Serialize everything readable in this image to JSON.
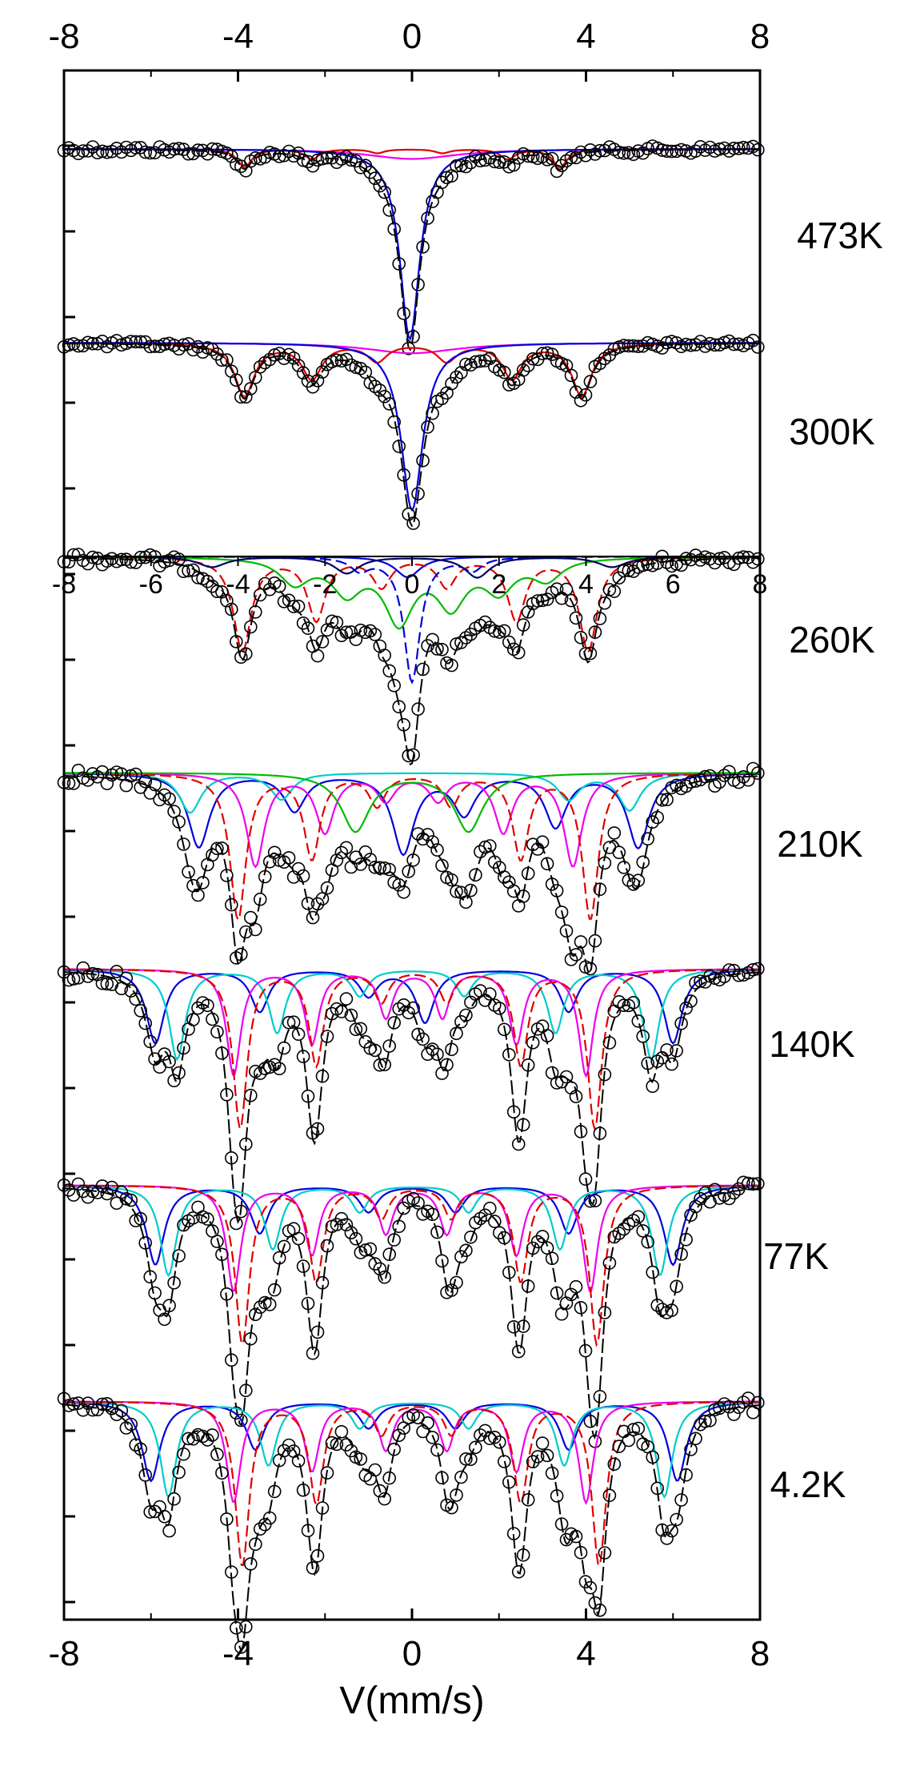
{
  "chart_data": {
    "type": "line",
    "title": "",
    "xlabel": "V(mm/s)",
    "ylabel": "",
    "xlim": [
      -8,
      8
    ],
    "xticks": [
      "-8",
      "-4",
      "0",
      "4",
      "8"
    ],
    "inset_axis": {
      "attached_to": "260K",
      "xlim": [
        -8,
        8
      ],
      "xticks": [
        "-8",
        "-6",
        "-4",
        "-2",
        "0",
        "2",
        "4",
        "6",
        "8"
      ]
    },
    "grid": false,
    "legend": "none",
    "spectrum_type": "Mossbauer absorption spectra, stacked by temperature",
    "colors": {
      "data": "#000000",
      "fit": "#000000",
      "red": "#e00000",
      "blue": "#0000dd",
      "magenta": "#ee00ee",
      "cyan": "#00cccc",
      "green": "#00bb00",
      "dark": "#000066"
    },
    "series": [
      {
        "name": "473K",
        "depth": 0.25,
        "noise": 0.02,
        "components": [
          {
            "color": "magenta",
            "dashed": false,
            "lines": [
              [
                0,
                0.05,
                2.5
              ]
            ]
          },
          {
            "color": "red",
            "dashed": false,
            "lines": [
              [
                -3.85,
                0.09,
                0.4
              ],
              [
                -2.3,
                0.05,
                0.4
              ],
              [
                -0.8,
                0.02,
                0.4
              ],
              [
                0.7,
                0.02,
                0.4
              ],
              [
                2.2,
                0.05,
                0.4
              ],
              [
                3.4,
                0.09,
                0.4
              ]
            ]
          },
          {
            "color": "blue",
            "dashed": false,
            "lines": [
              [
                -0.05,
                0.95,
                0.55
              ]
            ]
          }
        ]
      },
      {
        "name": "300K",
        "depth": 0.22,
        "noise": 0.02,
        "components": [
          {
            "color": "magenta",
            "dashed": false,
            "lines": [
              [
                0,
                0.06,
                2.5
              ]
            ]
          },
          {
            "color": "red",
            "dashed": false,
            "lines": [
              [
                -3.85,
                0.3,
                0.55
              ],
              [
                -2.3,
                0.2,
                0.55
              ],
              [
                -0.8,
                0.1,
                0.55
              ],
              [
                0.8,
                0.1,
                0.55
              ],
              [
                2.3,
                0.2,
                0.55
              ],
              [
                3.9,
                0.3,
                0.55
              ]
            ]
          },
          {
            "color": "blue",
            "dashed": false,
            "lines": [
              [
                0,
                0.95,
                0.6
              ]
            ]
          }
        ]
      },
      {
        "name": "260K",
        "depth": 0.26,
        "noise": 0.03,
        "components": [
          {
            "color": "blue",
            "dashed": false,
            "lines": [
              [
                -0.1,
                0.1,
                0.7
              ]
            ]
          },
          {
            "color": "red",
            "dashed": true,
            "lines": [
              [
                -3.9,
                0.45,
                0.5
              ],
              [
                -2.2,
                0.3,
                0.5
              ],
              [
                -0.7,
                0.14,
                0.5
              ],
              [
                0.8,
                0.14,
                0.5
              ],
              [
                2.4,
                0.3,
                0.5
              ],
              [
                4.05,
                0.45,
                0.5
              ]
            ]
          },
          {
            "color": "green",
            "dashed": false,
            "lines": [
              [
                -2.7,
                0.12,
                0.8
              ],
              [
                -1.5,
                0.16,
                0.8
              ],
              [
                -0.3,
                0.3,
                0.8
              ],
              [
                0.9,
                0.22,
                0.8
              ],
              [
                2.0,
                0.15,
                0.8
              ],
              [
                3.1,
                0.1,
                0.8
              ]
            ]
          },
          {
            "color": "blue",
            "dashed": true,
            "lines": [
              [
                0,
                0.6,
                0.45
              ],
              [
                -1.2,
                0.06,
                0.5
              ],
              [
                1.4,
                0.06,
                0.5
              ]
            ]
          },
          {
            "color": "dark",
            "dashed": false,
            "lines": [
              [
                -4.6,
                0.05,
                0.8
              ],
              [
                4.6,
                0.05,
                0.8
              ],
              [
                1.5,
                0.1,
                0.7
              ],
              [
                -1.5,
                0.08,
                0.7
              ]
            ]
          }
        ]
      },
      {
        "name": "210K",
        "depth": 0.33,
        "noise": 0.03,
        "components": [
          {
            "color": "blue",
            "dashed": false,
            "lines": [
              [
                -4.9,
                0.28,
                0.6
              ],
              [
                -2.7,
                0.14,
                0.6
              ],
              [
                -0.2,
                0.3,
                0.6
              ],
              [
                1.2,
                0.15,
                0.6
              ],
              [
                3.3,
                0.2,
                0.6
              ],
              [
                5.2,
                0.28,
                0.6
              ]
            ]
          },
          {
            "color": "cyan",
            "dashed": false,
            "lines": [
              [
                -5.1,
                0.15,
                0.6
              ],
              [
                -3.0,
                0.1,
                0.6
              ],
              [
                3.6,
                0.1,
                0.6
              ],
              [
                5.0,
                0.14,
                0.6
              ]
            ]
          },
          {
            "color": "magenta",
            "dashed": false,
            "lines": [
              [
                -3.6,
                0.35,
                0.5
              ],
              [
                -2.0,
                0.22,
                0.5
              ],
              [
                -0.6,
                0.1,
                0.5
              ],
              [
                0.6,
                0.1,
                0.5
              ],
              [
                2.1,
                0.22,
                0.5
              ],
              [
                3.7,
                0.35,
                0.5
              ]
            ]
          },
          {
            "color": "red",
            "dashed": true,
            "lines": [
              [
                -4.0,
                0.55,
                0.45
              ],
              [
                -2.3,
                0.32,
                0.45
              ],
              [
                -0.8,
                0.12,
                0.45
              ],
              [
                0.9,
                0.12,
                0.45
              ],
              [
                2.5,
                0.32,
                0.45
              ],
              [
                4.1,
                0.55,
                0.45
              ]
            ]
          },
          {
            "color": "green",
            "dashed": false,
            "lines": [
              [
                -1.3,
                0.22,
                0.8
              ],
              [
                1.3,
                0.22,
                0.8
              ]
            ]
          }
        ]
      },
      {
        "name": "140K",
        "depth": 0.33,
        "noise": 0.03,
        "components": [
          {
            "color": "blue",
            "dashed": false,
            "lines": [
              [
                -5.9,
                0.28,
                0.5
              ],
              [
                -3.5,
                0.16,
                0.5
              ],
              [
                -1.0,
                0.1,
                0.5
              ],
              [
                0.3,
                0.2,
                0.5
              ],
              [
                3.6,
                0.16,
                0.5
              ],
              [
                6.0,
                0.28,
                0.5
              ]
            ]
          },
          {
            "color": "cyan",
            "dashed": false,
            "lines": [
              [
                -5.4,
                0.34,
                0.45
              ],
              [
                -3.1,
                0.24,
                0.45
              ],
              [
                -1.2,
                0.1,
                0.45
              ],
              [
                1.2,
                0.1,
                0.45
              ],
              [
                3.3,
                0.24,
                0.45
              ],
              [
                5.5,
                0.34,
                0.45
              ]
            ]
          },
          {
            "color": "magenta",
            "dashed": false,
            "lines": [
              [
                -4.1,
                0.4,
                0.4
              ],
              [
                -2.3,
                0.28,
                0.4
              ],
              [
                -0.6,
                0.18,
                0.4
              ],
              [
                0.7,
                0.18,
                0.4
              ],
              [
                2.4,
                0.28,
                0.4
              ],
              [
                4.0,
                0.4,
                0.4
              ]
            ]
          },
          {
            "color": "red",
            "dashed": true,
            "lines": [
              [
                -3.95,
                0.6,
                0.4
              ],
              [
                -2.2,
                0.36,
                0.4
              ],
              [
                -0.7,
                0.12,
                0.4
              ],
              [
                0.8,
                0.12,
                0.4
              ],
              [
                2.5,
                0.36,
                0.4
              ],
              [
                4.2,
                0.6,
                0.4
              ]
            ]
          }
        ]
      },
      {
        "name": "77K",
        "depth": 0.33,
        "noise": 0.03,
        "components": [
          {
            "color": "blue",
            "dashed": false,
            "lines": [
              [
                -5.9,
                0.3,
                0.5
              ],
              [
                -3.5,
                0.18,
                0.5
              ],
              [
                -1.0,
                0.1,
                0.5
              ],
              [
                1.0,
                0.1,
                0.5
              ],
              [
                3.6,
                0.18,
                0.5
              ],
              [
                6.0,
                0.3,
                0.5
              ]
            ]
          },
          {
            "color": "cyan",
            "dashed": false,
            "lines": [
              [
                -5.6,
                0.34,
                0.45
              ],
              [
                -3.2,
                0.24,
                0.45
              ],
              [
                -1.2,
                0.1,
                0.45
              ],
              [
                1.3,
                0.1,
                0.45
              ],
              [
                3.4,
                0.24,
                0.45
              ],
              [
                5.7,
                0.34,
                0.45
              ]
            ]
          },
          {
            "color": "magenta",
            "dashed": false,
            "lines": [
              [
                -4.1,
                0.4,
                0.4
              ],
              [
                -2.3,
                0.26,
                0.4
              ],
              [
                -0.6,
                0.18,
                0.4
              ],
              [
                0.8,
                0.18,
                0.4
              ],
              [
                2.4,
                0.26,
                0.4
              ],
              [
                4.1,
                0.4,
                0.4
              ]
            ]
          },
          {
            "color": "red",
            "dashed": true,
            "lines": [
              [
                -3.9,
                0.6,
                0.4
              ],
              [
                -2.2,
                0.36,
                0.4
              ],
              [
                -0.7,
                0.12,
                0.4
              ],
              [
                0.9,
                0.12,
                0.4
              ],
              [
                2.5,
                0.36,
                0.4
              ],
              [
                4.25,
                0.6,
                0.4
              ]
            ]
          }
        ]
      },
      {
        "name": "4.2K",
        "depth": 0.33,
        "noise": 0.03,
        "components": [
          {
            "color": "blue",
            "dashed": false,
            "lines": [
              [
                -6.0,
                0.3,
                0.5
              ],
              [
                -3.6,
                0.18,
                0.5
              ],
              [
                -1.0,
                0.1,
                0.5
              ],
              [
                1.0,
                0.1,
                0.5
              ],
              [
                3.6,
                0.18,
                0.5
              ],
              [
                6.1,
                0.3,
                0.5
              ]
            ]
          },
          {
            "color": "cyan",
            "dashed": false,
            "lines": [
              [
                -5.6,
                0.36,
                0.45
              ],
              [
                -3.3,
                0.24,
                0.45
              ],
              [
                -1.2,
                0.1,
                0.45
              ],
              [
                1.3,
                0.1,
                0.45
              ],
              [
                3.5,
                0.24,
                0.45
              ],
              [
                5.8,
                0.36,
                0.45
              ]
            ]
          },
          {
            "color": "magenta",
            "dashed": false,
            "lines": [
              [
                -4.1,
                0.38,
                0.4
              ],
              [
                -2.3,
                0.26,
                0.4
              ],
              [
                -0.6,
                0.18,
                0.4
              ],
              [
                0.8,
                0.18,
                0.4
              ],
              [
                2.4,
                0.26,
                0.4
              ],
              [
                4.0,
                0.38,
                0.4
              ]
            ]
          },
          {
            "color": "red",
            "dashed": true,
            "lines": [
              [
                -3.9,
                0.62,
                0.4
              ],
              [
                -2.2,
                0.38,
                0.4
              ],
              [
                -0.7,
                0.12,
                0.4
              ],
              [
                0.9,
                0.12,
                0.4
              ],
              [
                2.5,
                0.38,
                0.4
              ],
              [
                4.3,
                0.62,
                0.4
              ]
            ]
          }
        ]
      }
    ]
  }
}
